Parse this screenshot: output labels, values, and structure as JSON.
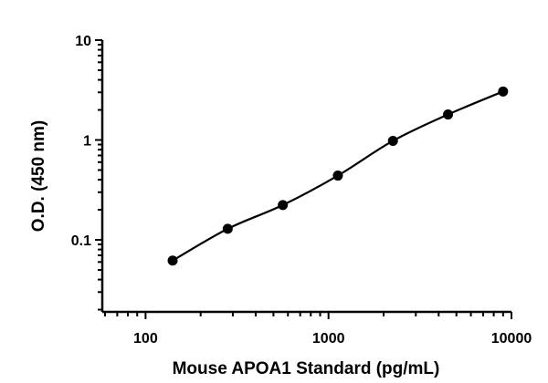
{
  "chart_data": {
    "type": "scatter",
    "title": "",
    "xlabel": "Mouse APOA1 Standard (pg/mL)",
    "ylabel": "O.D. (450 nm)",
    "xscale": "log",
    "yscale": "log",
    "xlim": [
      58,
      10000
    ],
    "ylim": [
      0.019,
      10
    ],
    "xticks": [
      {
        "value": 100,
        "label": "100"
      },
      {
        "value": 1000,
        "label": "1000"
      },
      {
        "value": 10000,
        "label": "10000"
      }
    ],
    "yticks": [
      {
        "value": 0.1,
        "label": "0.1"
      },
      {
        "value": 1,
        "label": "1"
      },
      {
        "value": 10,
        "label": "10"
      }
    ],
    "grid": false,
    "fit_curve": true,
    "x": [
      140.6,
      281.25,
      562.5,
      1125,
      2250,
      4500,
      9000
    ],
    "y": [
      0.062,
      0.129,
      0.223,
      0.44,
      0.98,
      1.8,
      3.06
    ],
    "marker_color": "#000000"
  }
}
